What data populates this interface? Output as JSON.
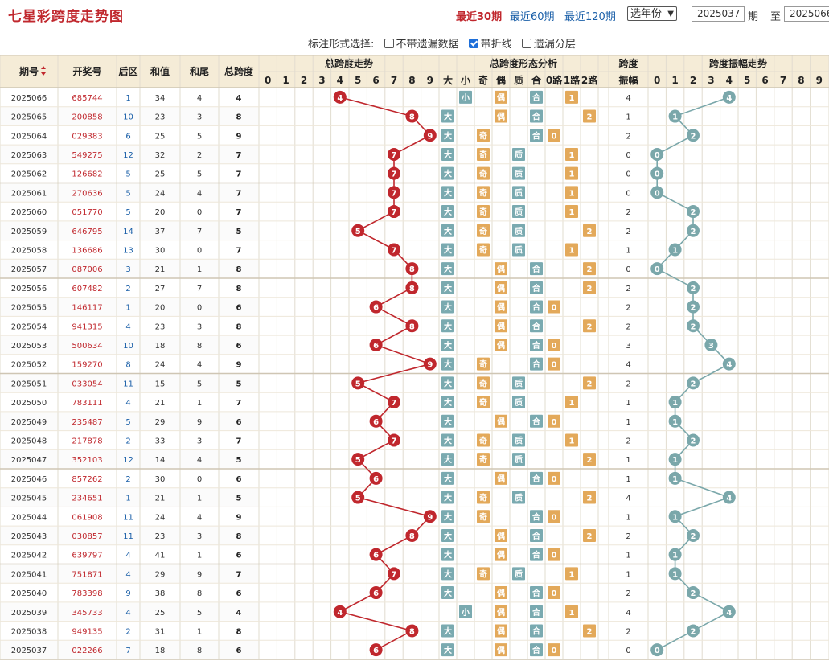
{
  "header": {
    "title": "七星彩跨度走势图",
    "recent": [
      "最近30期",
      "最近60期",
      "最近120期"
    ],
    "year_select": "选年份",
    "from_value": "2025037",
    "from_label": "期",
    "to_label": "至",
    "to_value": "2025066"
  },
  "options": {
    "label": "标注形式选择:",
    "items": [
      {
        "label": "不带遗漏数据",
        "checked": false
      },
      {
        "label": "带折线",
        "checked": true
      },
      {
        "label": "遗漏分层",
        "checked": false
      }
    ]
  },
  "columns": {
    "issue": "期号",
    "draw": "开奖号",
    "back": "后区",
    "sum": "和值",
    "tail": "和尾",
    "span": "总跨度",
    "trend_group": "总跨度走势",
    "form_group": "总跨度形态分析",
    "amp": "跨度振幅",
    "amp_group": "跨度振幅走势",
    "digits": [
      "0",
      "1",
      "2",
      "3",
      "4",
      "5",
      "6",
      "7",
      "8",
      "9"
    ],
    "form": [
      "大",
      "小",
      "奇",
      "偶",
      "质",
      "合",
      "0路",
      "1路",
      "2路"
    ]
  },
  "colors": {
    "header_bg": "#f5ecd7",
    "ball_red": "#c0272d",
    "ball_teal": "#7aa7aa",
    "form_big": "#7aaab0",
    "form_odd": "#e3a95a",
    "form_prime": "#7aaab0",
    "form_road": "#e3a95a"
  },
  "rows": [
    {
      "issue": "2025066",
      "draw": "685744",
      "back": "1",
      "sum": "34",
      "tail": "4",
      "span": "4",
      "amp": "4"
    },
    {
      "issue": "2025065",
      "draw": "200858",
      "back": "10",
      "sum": "23",
      "tail": "3",
      "span": "8",
      "amp": "1"
    },
    {
      "issue": "2025064",
      "draw": "029383",
      "back": "6",
      "sum": "25",
      "tail": "5",
      "span": "9",
      "amp": "2"
    },
    {
      "issue": "2025063",
      "draw": "549275",
      "back": "12",
      "sum": "32",
      "tail": "2",
      "span": "7",
      "amp": "0"
    },
    {
      "issue": "2025062",
      "draw": "126682",
      "back": "5",
      "sum": "25",
      "tail": "5",
      "span": "7",
      "amp": "0"
    },
    {
      "issue": "2025061",
      "draw": "270636",
      "back": "5",
      "sum": "24",
      "tail": "4",
      "span": "7",
      "amp": "0"
    },
    {
      "issue": "2025060",
      "draw": "051770",
      "back": "5",
      "sum": "20",
      "tail": "0",
      "span": "7",
      "amp": "2"
    },
    {
      "issue": "2025059",
      "draw": "646795",
      "back": "14",
      "sum": "37",
      "tail": "7",
      "span": "5",
      "amp": "2"
    },
    {
      "issue": "2025058",
      "draw": "136686",
      "back": "13",
      "sum": "30",
      "tail": "0",
      "span": "7",
      "amp": "1"
    },
    {
      "issue": "2025057",
      "draw": "087006",
      "back": "3",
      "sum": "21",
      "tail": "1",
      "span": "8",
      "amp": "0"
    },
    {
      "issue": "2025056",
      "draw": "607482",
      "back": "2",
      "sum": "27",
      "tail": "7",
      "span": "8",
      "amp": "2"
    },
    {
      "issue": "2025055",
      "draw": "146117",
      "back": "1",
      "sum": "20",
      "tail": "0",
      "span": "6",
      "amp": "2"
    },
    {
      "issue": "2025054",
      "draw": "941315",
      "back": "4",
      "sum": "23",
      "tail": "3",
      "span": "8",
      "amp": "2"
    },
    {
      "issue": "2025053",
      "draw": "500634",
      "back": "10",
      "sum": "18",
      "tail": "8",
      "span": "6",
      "amp": "3"
    },
    {
      "issue": "2025052",
      "draw": "159270",
      "back": "8",
      "sum": "24",
      "tail": "4",
      "span": "9",
      "amp": "4"
    },
    {
      "issue": "2025051",
      "draw": "033054",
      "back": "11",
      "sum": "15",
      "tail": "5",
      "span": "5",
      "amp": "2"
    },
    {
      "issue": "2025050",
      "draw": "783111",
      "back": "4",
      "sum": "21",
      "tail": "1",
      "span": "7",
      "amp": "1"
    },
    {
      "issue": "2025049",
      "draw": "235487",
      "back": "5",
      "sum": "29",
      "tail": "9",
      "span": "6",
      "amp": "1"
    },
    {
      "issue": "2025048",
      "draw": "217878",
      "back": "2",
      "sum": "33",
      "tail": "3",
      "span": "7",
      "amp": "2"
    },
    {
      "issue": "2025047",
      "draw": "352103",
      "back": "12",
      "sum": "14",
      "tail": "4",
      "span": "5",
      "amp": "1"
    },
    {
      "issue": "2025046",
      "draw": "857262",
      "back": "2",
      "sum": "30",
      "tail": "0",
      "span": "6",
      "amp": "1"
    },
    {
      "issue": "2025045",
      "draw": "234651",
      "back": "1",
      "sum": "21",
      "tail": "1",
      "span": "5",
      "amp": "4"
    },
    {
      "issue": "2025044",
      "draw": "061908",
      "back": "11",
      "sum": "24",
      "tail": "4",
      "span": "9",
      "amp": "1"
    },
    {
      "issue": "2025043",
      "draw": "030857",
      "back": "11",
      "sum": "23",
      "tail": "3",
      "span": "8",
      "amp": "2"
    },
    {
      "issue": "2025042",
      "draw": "639797",
      "back": "4",
      "sum": "41",
      "tail": "1",
      "span": "6",
      "amp": "1"
    },
    {
      "issue": "2025041",
      "draw": "751871",
      "back": "4",
      "sum": "29",
      "tail": "9",
      "span": "7",
      "amp": "1"
    },
    {
      "issue": "2025040",
      "draw": "783398",
      "back": "9",
      "sum": "38",
      "tail": "8",
      "span": "6",
      "amp": "2"
    },
    {
      "issue": "2025039",
      "draw": "345733",
      "back": "4",
      "sum": "25",
      "tail": "5",
      "span": "4",
      "amp": "4"
    },
    {
      "issue": "2025038",
      "draw": "949135",
      "back": "2",
      "sum": "31",
      "tail": "1",
      "span": "8",
      "amp": "2"
    },
    {
      "issue": "2025037",
      "draw": "022266",
      "back": "7",
      "sum": "18",
      "tail": "8",
      "span": "6",
      "amp": "0"
    }
  ]
}
